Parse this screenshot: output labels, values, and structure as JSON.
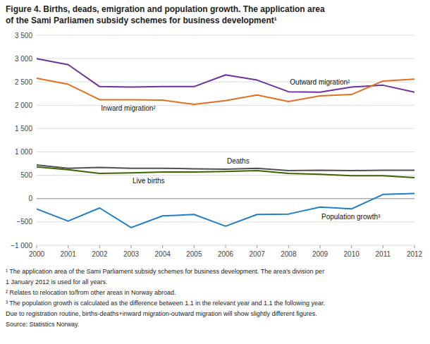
{
  "chart_data": {
    "type": "line",
    "title": [
      "Figure 4. Births, deads, emigration and population growth. The application area",
      "of the Sami Parliamen subsidy schemes for business development¹"
    ],
    "x": [
      2000,
      2001,
      2002,
      2003,
      2004,
      2005,
      2006,
      2007,
      2008,
      2009,
      2010,
      2011,
      2012
    ],
    "series": [
      {
        "name": "Outward migration²",
        "color": "#7030a0",
        "values": [
          3000,
          2870,
          2400,
          2390,
          2400,
          2400,
          2650,
          2540,
          2290,
          2280,
          2390,
          2430,
          2280
        ]
      },
      {
        "name": "Inward migration²",
        "color": "#e07020",
        "values": [
          2580,
          2450,
          2120,
          2120,
          2110,
          2020,
          2100,
          2220,
          2080,
          2200,
          2230,
          2520,
          2560
        ]
      },
      {
        "name": "Deaths",
        "color": "#505050",
        "values": [
          720,
          650,
          670,
          650,
          650,
          640,
          630,
          650,
          600,
          610,
          600,
          610,
          610
        ]
      },
      {
        "name": "Live births",
        "color": "#386600",
        "values": [
          680,
          620,
          540,
          550,
          570,
          570,
          580,
          600,
          540,
          520,
          490,
          490,
          450
        ]
      },
      {
        "name": "Population growth³",
        "color": "#1f7ec6",
        "values": [
          -220,
          -480,
          -200,
          -620,
          -370,
          -340,
          -590,
          -340,
          -330,
          -180,
          -220,
          90,
          110
        ]
      }
    ],
    "xlim": [
      2000,
      2012
    ],
    "xticks": [
      2000,
      2001,
      2002,
      2003,
      2004,
      2005,
      2006,
      2007,
      2008,
      2009,
      2010,
      2011,
      2012
    ],
    "ylim": [
      -1000,
      3500
    ],
    "yticks": [
      {
        "value": -1000,
        "label": "−1 000"
      },
      {
        "value": -500,
        "label": "−500"
      },
      0,
      500,
      {
        "value": 1000,
        "label": "1 000"
      },
      {
        "value": 1500,
        "label": "1 500"
      },
      {
        "value": 2000,
        "label": "2 000"
      },
      {
        "value": 2500,
        "label": "2 500"
      },
      {
        "value": 3000,
        "label": "3 000"
      },
      {
        "value": 3500,
        "label": "3 500"
      }
    ],
    "grid": true,
    "footnotes": [
      "¹ The application area of the Sami Parliament subsidy schemes for business development. The area's division per",
      "1 January 2012 is used for all years.",
      "² Relates to relocation to/from other areas in Norway abroad.",
      "³ The population growth is calculated as the difference between 1.1 in the relevant year and 1.1 the following year.",
      "Due to registration routine, births-deaths+inward migration-outward migration will show slightly different figures.",
      "Source: Statistics Norway."
    ]
  }
}
